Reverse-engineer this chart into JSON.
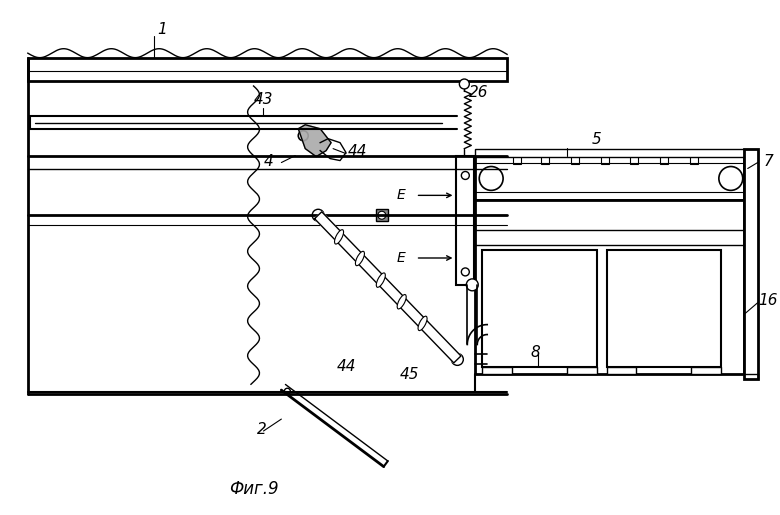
{
  "bg_color": "#ffffff",
  "line_color": "#000000",
  "fig_caption": "Фиг.9"
}
